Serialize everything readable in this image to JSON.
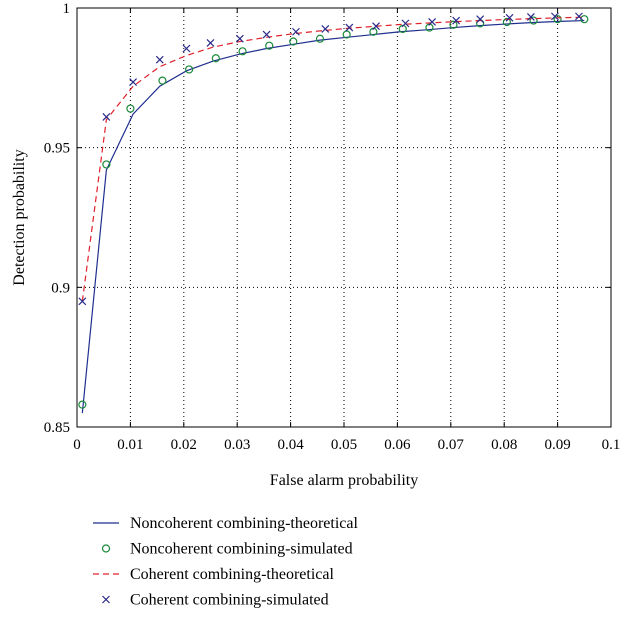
{
  "chart_data": {
    "type": "line",
    "xlabel": "False alarm probability",
    "ylabel": "Detection probability",
    "xlim": [
      0,
      0.1
    ],
    "ylim": [
      0.85,
      1
    ],
    "xticks": [
      0,
      0.01,
      0.02,
      0.03,
      0.04,
      0.05,
      0.06,
      0.07,
      0.08,
      0.09,
      0.1
    ],
    "xtick_labels": [
      "0",
      "0.01",
      "0.02",
      "0.03",
      "0.04",
      "0.05",
      "0.06",
      "0.07",
      "0.08",
      "0.09",
      "0.1"
    ],
    "yticks": [
      0.85,
      0.9,
      0.95,
      1
    ],
    "ytick_labels": [
      "0.85",
      "0.9",
      "0.95",
      "1"
    ],
    "grid": true,
    "legend_position": "bottom-outside",
    "series": [
      {
        "name": "Noncoherent combining-theoretical",
        "style": "solid-line",
        "color": "#1f2f8f",
        "x": [
          0.001,
          0.0055,
          0.0105,
          0.0155,
          0.0205,
          0.0255,
          0.0305,
          0.0355,
          0.0405,
          0.0455,
          0.0505,
          0.0555,
          0.0605,
          0.0655,
          0.0705,
          0.0755,
          0.0805,
          0.0855,
          0.0905,
          0.095
        ],
        "y": [
          0.855,
          0.942,
          0.962,
          0.972,
          0.9775,
          0.981,
          0.9835,
          0.9855,
          0.987,
          0.9885,
          0.9895,
          0.9905,
          0.9915,
          0.9922,
          0.993,
          0.9937,
          0.9943,
          0.9948,
          0.9952,
          0.9955
        ]
      },
      {
        "name": "Noncoherent combining-simulated",
        "style": "circle-marker",
        "color": "#1a8a3a",
        "x": [
          0.001,
          0.0055,
          0.01,
          0.016,
          0.021,
          0.026,
          0.031,
          0.036,
          0.0405,
          0.0455,
          0.0505,
          0.0555,
          0.061,
          0.066,
          0.0705,
          0.0755,
          0.0805,
          0.0855,
          0.09,
          0.095
        ],
        "y": [
          0.858,
          0.944,
          0.964,
          0.974,
          0.978,
          0.982,
          0.9845,
          0.9865,
          0.988,
          0.989,
          0.9905,
          0.9915,
          0.9925,
          0.993,
          0.994,
          0.9945,
          0.995,
          0.9955,
          0.996,
          0.996
        ]
      },
      {
        "name": "Coherent combining-theoretical",
        "style": "dashed-line",
        "color": "#e0202a",
        "x": [
          0.001,
          0.0055,
          0.0105,
          0.0155,
          0.0205,
          0.0255,
          0.0305,
          0.0355,
          0.0405,
          0.0455,
          0.0505,
          0.0555,
          0.0605,
          0.0655,
          0.0705,
          0.0755,
          0.0805,
          0.0855,
          0.0905,
          0.095
        ],
        "y": [
          0.895,
          0.96,
          0.972,
          0.979,
          0.983,
          0.986,
          0.988,
          0.9895,
          0.9908,
          0.9918,
          0.9927,
          0.9934,
          0.9941,
          0.9946,
          0.9951,
          0.9955,
          0.9959,
          0.9962,
          0.9965,
          0.9967
        ]
      },
      {
        "name": "Coherent combining-simulated",
        "style": "x-marker",
        "color": "#2a2a8a",
        "x": [
          0.001,
          0.0055,
          0.0105,
          0.0155,
          0.0205,
          0.025,
          0.0305,
          0.0355,
          0.041,
          0.0465,
          0.051,
          0.056,
          0.0615,
          0.0665,
          0.071,
          0.0755,
          0.081,
          0.085,
          0.0895,
          0.094
        ],
        "y": [
          0.895,
          0.961,
          0.9735,
          0.9815,
          0.9855,
          0.9875,
          0.989,
          0.9905,
          0.9915,
          0.9925,
          0.993,
          0.9935,
          0.9945,
          0.995,
          0.9955,
          0.996,
          0.9965,
          0.9968,
          0.997,
          0.997
        ]
      }
    ]
  }
}
